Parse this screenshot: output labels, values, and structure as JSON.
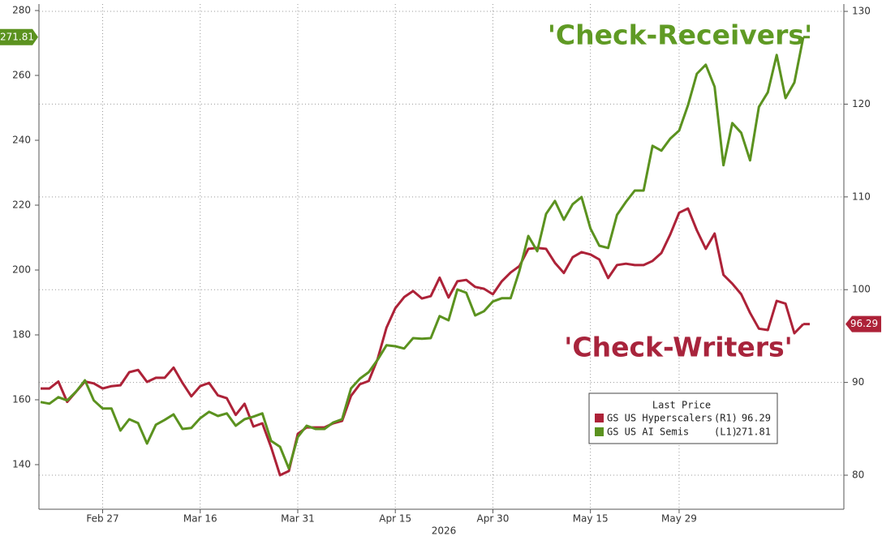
{
  "chart_data": {
    "type": "line",
    "annotations": [
      "'Check-Receivers'",
      "'Check-Writers'"
    ],
    "x_label": "2026",
    "legend_title": "Last Price",
    "grid": true,
    "categories": [
      null,
      null,
      null,
      null,
      null,
      null,
      null,
      "Feb 27",
      null,
      null,
      null,
      null,
      null,
      null,
      null,
      null,
      null,
      null,
      "Mar 16",
      null,
      null,
      null,
      null,
      null,
      null,
      null,
      null,
      null,
      null,
      "Mar 31",
      null,
      null,
      null,
      null,
      null,
      null,
      null,
      null,
      null,
      null,
      "Apr 15",
      null,
      null,
      null,
      null,
      null,
      null,
      null,
      null,
      null,
      null,
      "Apr 30",
      null,
      null,
      null,
      null,
      null,
      null,
      null,
      null,
      null,
      null,
      "May 15",
      null,
      null,
      null,
      null,
      null,
      null,
      null,
      null,
      null,
      "May 29",
      null,
      null,
      null,
      null,
      null,
      null,
      null,
      null,
      null,
      null,
      null,
      null,
      null,
      null
    ],
    "ylim": [
      126.25,
      282
    ],
    "yticks": [
      140,
      160,
      180,
      200,
      220,
      240,
      260,
      280
    ],
    "y2lim": [
      76.33,
      130.79
    ],
    "y2ticks": [
      80,
      90,
      100,
      110,
      120,
      130
    ],
    "series": [
      {
        "name": "GS US Hyperscalers",
        "legend_axis": "(R1)",
        "last_price": 96.29,
        "axis": "y2",
        "color": "#ad2238",
        "values": [
          89.35,
          89.35,
          90.1,
          87.9,
          89,
          90.1,
          89.9,
          89.35,
          89.6,
          89.7,
          91.1,
          91.35,
          90.05,
          90.5,
          90.5,
          91.6,
          89.95,
          88.5,
          89.6,
          89.95,
          88.6,
          88.3,
          86.5,
          87.7,
          85.25,
          85.6,
          83,
          80,
          80.45,
          84.45,
          85.15,
          85.15,
          85.15,
          85.6,
          85.85,
          88.55,
          89.8,
          90.15,
          92.5,
          95.9,
          98,
          99.2,
          99.85,
          99.05,
          99.3,
          101.3,
          99.15,
          100.9,
          101.05,
          100.3,
          100.1,
          99.5,
          100.9,
          101.85,
          102.55,
          104.4,
          104.5,
          104.4,
          102.9,
          101.8,
          103.5,
          104.05,
          103.8,
          103.25,
          101.25,
          102.65,
          102.8,
          102.65,
          102.65,
          103.1,
          103.95,
          105.95,
          108.3,
          108.75,
          106.4,
          104.4,
          106.05,
          101.6,
          100.65,
          99.5,
          97.5,
          95.8,
          95.65,
          98.8,
          98.5,
          95.3,
          96.29
        ]
      },
      {
        "name": "GS US AI Semis",
        "legend_axis": "(L1)",
        "last_price": 271.81,
        "axis": "y",
        "color": "#5b921f",
        "values": [
          159.3,
          158.8,
          160.8,
          159.8,
          162.5,
          166,
          159.8,
          157.3,
          157.3,
          150.5,
          154,
          152.8,
          146.5,
          152.3,
          153.8,
          155.5,
          151,
          151.3,
          154.3,
          156.3,
          155,
          155.8,
          152,
          154,
          154.8,
          155.8,
          147.3,
          145.5,
          138.8,
          148.5,
          152,
          151,
          151,
          153,
          154,
          163.5,
          166.5,
          168.5,
          172.3,
          176.8,
          176.5,
          175.8,
          179,
          178.8,
          179,
          185.8,
          184.5,
          194,
          193,
          186,
          187.3,
          190.3,
          191.3,
          191.3,
          199.8,
          210.5,
          205.8,
          217.3,
          221.3,
          215.5,
          220.3,
          222.5,
          212.8,
          207.5,
          206.8,
          217,
          221,
          224.5,
          224.5,
          238.3,
          236.8,
          240.5,
          243,
          250.8,
          260.5,
          263.3,
          256.5,
          232.3,
          245.3,
          242.3,
          233.8,
          250.3,
          254.8,
          266.3,
          253,
          257.8,
          271.81
        ]
      }
    ]
  }
}
